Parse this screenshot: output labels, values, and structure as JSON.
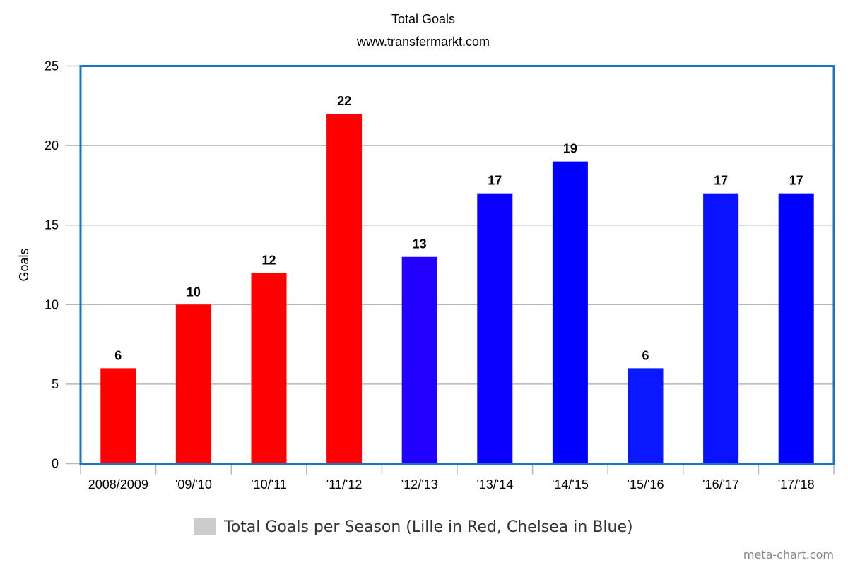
{
  "chart_data": {
    "type": "bar",
    "title": "Total Goals",
    "subtitle": "www.transfermarkt.com",
    "xlabel": "",
    "ylabel": "Goals",
    "ylim": [
      0,
      25
    ],
    "yticks": [
      0,
      5,
      10,
      15,
      20,
      25
    ],
    "grid": true,
    "categories": [
      "2008/2009",
      "'09/'10",
      "'10/'11",
      "'11/'12",
      "'12/'13",
      "'13/'14",
      "'14/'15",
      "'15/'16",
      "'16/'17",
      "'17/'18"
    ],
    "values": [
      6,
      10,
      12,
      22,
      13,
      17,
      19,
      6,
      17,
      17
    ],
    "bar_colors": [
      "#ff0000",
      "#ff0000",
      "#ff0000",
      "#ff0000",
      "#2200ff",
      "#0a00ff",
      "#0000ff",
      "#0a18ff",
      "#0a12ff",
      "#0000ff"
    ],
    "data_labels": true,
    "legend": {
      "position": "bottom",
      "entries": [
        {
          "label": "Total Goals per Season (Lille in Red, Chelsea in Blue)",
          "color": "#cccccc"
        }
      ]
    },
    "colors": {
      "plot_border": "#1a73c4",
      "grid": "#b8b8b8",
      "axis": "#b8b8b8"
    }
  },
  "watermark": "meta-chart.com"
}
